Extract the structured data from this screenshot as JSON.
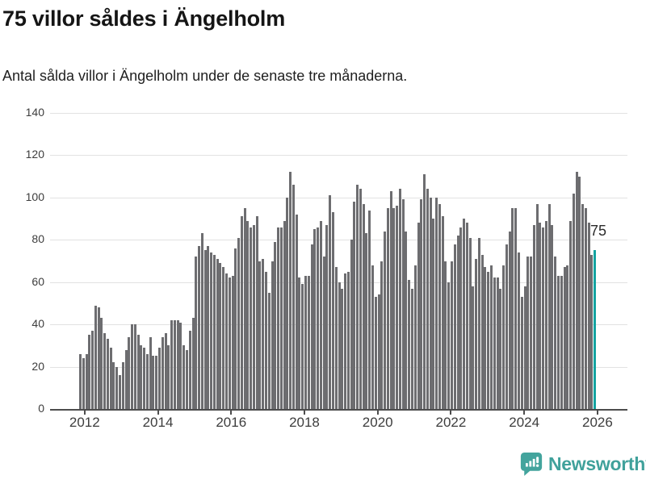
{
  "title": "75 villor såldes i Ängelholm",
  "subtitle": "Antal sålda villor i Ängelholm under de senaste tre månaderna.",
  "annotation": {
    "last_value_label": "75"
  },
  "footer": {
    "brand": "Newsworthy",
    "logo_icon": "newsworthy-speech-bubble-bar-chart-icon"
  },
  "colors": {
    "bar_gray": "#6d6d70",
    "bar_highlight_teal": "#14a3a0",
    "brand_teal": "#40a19b",
    "grid": "#e2e2e2",
    "axis": "#4d4d4d",
    "title_text": "#151515",
    "tick_text": "#3d3d3d"
  },
  "chart_data": {
    "type": "bar",
    "title": "75 villor såldes i Ängelholm",
    "subtitle": "Antal sålda villor i Ängelholm under de senaste tre månaderna.",
    "frequency": "monthly",
    "x_start": "2012-01",
    "x_end": "2026-02",
    "ylim": [
      0,
      140
    ],
    "y_ticks": [
      0,
      20,
      40,
      60,
      80,
      100,
      120,
      140
    ],
    "x_tick_labels": [
      "2012",
      "2014",
      "2016",
      "2018",
      "2020",
      "2022",
      "2024",
      "2026"
    ],
    "grid": "horizontal",
    "legend": "none",
    "highlight_index": 169,
    "values": [
      26,
      24,
      26,
      35,
      37,
      49,
      48,
      43,
      36,
      33,
      29,
      22,
      20,
      16,
      22,
      28,
      34,
      40,
      40,
      35,
      30,
      29,
      26,
      34,
      25,
      25,
      29,
      34,
      36,
      30,
      42,
      42,
      42,
      41,
      30,
      28,
      37,
      43,
      72,
      77,
      83,
      75,
      77,
      74,
      73,
      71,
      69,
      67,
      64,
      62,
      63,
      76,
      81,
      91,
      95,
      89,
      86,
      87,
      91,
      70,
      71,
      65,
      55,
      70,
      79,
      86,
      86,
      89,
      100,
      112,
      106,
      92,
      62,
      59,
      63,
      63,
      78,
      85,
      86,
      89,
      72,
      87,
      101,
      93,
      67,
      60,
      57,
      64,
      65,
      80,
      98,
      106,
      104,
      97,
      83,
      94,
      68,
      53,
      54,
      70,
      84,
      95,
      103,
      95,
      96,
      104,
      99,
      84,
      61,
      57,
      68,
      88,
      99,
      111,
      104,
      100,
      90,
      100,
      97,
      91,
      70,
      60,
      70,
      78,
      82,
      86,
      90,
      88,
      81,
      58,
      71,
      81,
      73,
      67,
      65,
      68,
      62,
      62,
      57,
      68,
      78,
      84,
      95,
      95,
      74,
      53,
      58,
      72,
      72,
      87,
      97,
      88,
      86,
      89,
      97,
      87,
      72,
      63,
      63,
      67,
      68,
      89,
      102,
      112,
      110,
      97,
      95,
      88,
      73,
      75
    ]
  }
}
